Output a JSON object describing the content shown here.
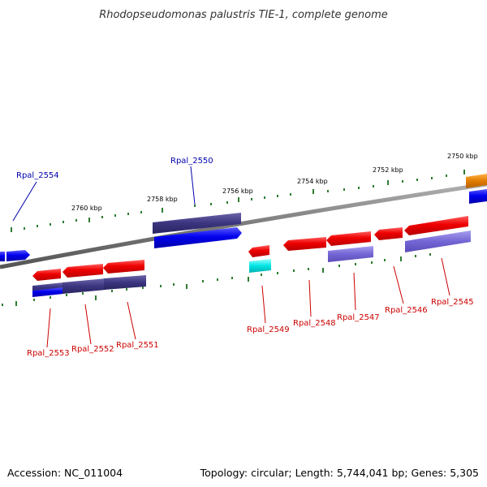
{
  "title": "Rhodopseudomonas palustris TIE-1, complete genome",
  "footer": {
    "accession": "Accession: NC_011004",
    "summary": "Topology: circular; Length: 5,744,041 bp; Genes: 5,305"
  },
  "colors": {
    "backbone": "#8a8a8a",
    "tick": "#2e7d32",
    "label_blue": "#0000aa",
    "label_red": "#cc0000"
  },
  "scale_labels": [
    "2760 kbp",
    "2758 kbp",
    "2756 kbp",
    "2754 kbp",
    "2752 kbp",
    "2750 kbp"
  ],
  "genes_top": [
    {
      "label": "Rpal_2554",
      "color": "#0000aa"
    },
    {
      "label": "Rpal_2550",
      "color": "#0000aa"
    }
  ],
  "genes_bottom": [
    {
      "label": "Rpal_2553",
      "color": "#cc0000"
    },
    {
      "label": "Rpal_2552",
      "color": "#cc0000"
    },
    {
      "label": "Rpal_2551",
      "color": "#cc0000"
    },
    {
      "label": "Rpal_2549",
      "color": "#cc0000"
    },
    {
      "label": "Rpal_2548",
      "color": "#cc0000"
    },
    {
      "label": "Rpal_2547",
      "color": "#cc0000"
    },
    {
      "label": "Rpal_2546",
      "color": "#cc0000"
    },
    {
      "label": "Rpal_2545",
      "color": "#cc0000"
    }
  ]
}
